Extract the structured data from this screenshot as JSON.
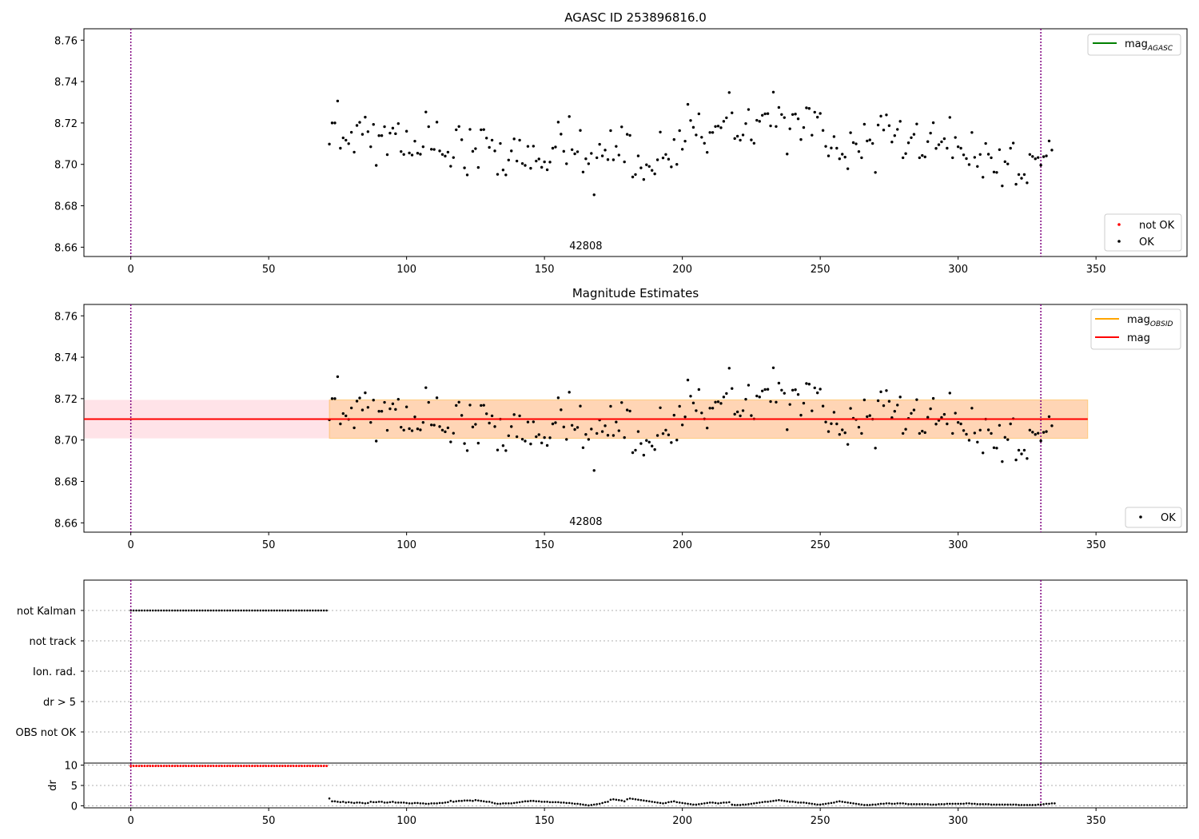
{
  "chart_data": [
    {
      "type": "scatter",
      "title": "AGASC ID 253896816.0",
      "xlabel": "",
      "ylabel": "",
      "xlim": [
        -17,
        383
      ],
      "ylim": [
        8.6555,
        8.7655
      ],
      "xticks": [
        "0",
        "50",
        "100",
        "150",
        "200",
        "250",
        "300",
        "350"
      ],
      "yticks": [
        "8.66",
        "8.68",
        "8.70",
        "8.72",
        "8.74",
        "8.76"
      ],
      "annotation": "42808",
      "vlines_x": [
        0,
        330
      ],
      "legend_upper": [
        {
          "label": "mag",
          "sub": "AGASC",
          "color": "#008000"
        }
      ],
      "legend_lower": [
        {
          "label": "not OK",
          "color": "#ff0000"
        },
        {
          "label": "OK",
          "color": "#000000"
        }
      ],
      "series": [
        {
          "name": "OK",
          "x_start": 72,
          "x_end": 330,
          "x_step": 1,
          "values": [
            8.7098,
            8.72,
            8.72,
            8.7306,
            8.7078,
            8.7128,
            8.7117,
            8.71,
            8.7155,
            8.7059,
            8.7188,
            8.7203,
            8.7145,
            8.7228,
            8.7158,
            8.7085,
            8.7193,
            8.6995,
            8.7139,
            8.7139,
            8.7182,
            8.7047,
            8.7151,
            8.7175,
            8.7148,
            8.7197,
            8.7062,
            8.7048,
            8.716,
            8.7055,
            8.7045,
            8.7112,
            8.7054,
            8.7049,
            8.7085,
            8.7253,
            8.7182,
            8.7073,
            8.7072,
            8.7204,
            8.7065,
            8.7048,
            8.704,
            8.7059,
            8.6991,
            8.7033,
            8.7167,
            8.7183,
            8.7119,
            8.6983,
            8.6949,
            8.7169,
            8.7063,
            8.7076,
            8.6985,
            8.7167,
            8.7168,
            8.7127,
            8.7082,
            8.7117,
            8.7065,
            8.6952,
            8.7101,
            8.6973,
            8.6949,
            8.7021,
            8.7065,
            8.7123,
            8.7016,
            8.7117,
            8.7004,
            8.6995,
            8.7087,
            8.6981,
            8.7088,
            8.7016,
            8.7026,
            8.6986,
            8.7012,
            8.6974,
            8.7011,
            8.7078,
            8.7084,
            8.7204,
            8.7146,
            8.7063,
            8.7003,
            8.7231,
            8.7071,
            8.7051,
            8.7061,
            8.7164,
            8.6963,
            8.7027,
            8.7003,
            8.7053,
            8.6853,
            8.7032,
            8.7097,
            8.7041,
            8.7069,
            8.7023,
            8.7163,
            8.7022,
            8.7087,
            8.7045,
            8.7181,
            8.7012,
            8.7145,
            8.714,
            8.6939,
            8.6951,
            8.7041,
            8.6983,
            8.6927,
            8.6998,
            8.699,
            8.6971,
            8.6954,
            8.7022,
            8.7156,
            8.7031,
            8.7048,
            8.7025,
            8.6988,
            8.712,
            8.7,
            8.7163,
            8.7073,
            8.7112,
            8.729,
            8.7212,
            8.7179,
            8.7142,
            8.7244,
            8.7131,
            8.7102,
            8.7058,
            8.7154,
            8.7154,
            8.7183,
            8.7185,
            8.7177,
            8.7208,
            8.7225,
            8.7347,
            8.7249,
            8.7125,
            8.7136,
            8.7117,
            8.7142,
            8.7197,
            8.7265,
            8.7118,
            8.7102,
            8.7213,
            8.7208,
            8.7237,
            8.7244,
            8.7245,
            8.7186,
            8.7349,
            8.7183,
            8.7275,
            8.7241,
            8.7226,
            8.705,
            8.7172,
            8.7241,
            8.7243,
            8.722,
            8.712,
            8.7178,
            8.7273,
            8.727,
            8.7141,
            8.7252,
            8.7228,
            8.7246,
            8.7164,
            8.7087,
            8.7041,
            8.7079,
            8.7134,
            8.7078,
            8.7027,
            8.7049,
            8.7035,
            8.6979,
            8.7153,
            8.7105,
            8.7099,
            8.7062,
            8.7032,
            8.7194,
            8.7113,
            8.7118,
            8.7101,
            8.6961,
            8.719,
            8.7233,
            8.7166,
            8.7239,
            8.7187,
            8.7108,
            8.7139,
            8.7169,
            8.7208,
            8.7032,
            8.7052,
            8.7104,
            8.7129,
            8.7145,
            8.7195,
            8.7032,
            8.7043,
            8.7036,
            8.711,
            8.7151,
            8.7201,
            8.7077,
            8.7095,
            8.7109,
            8.7124,
            8.7078,
            8.7227,
            8.7032,
            8.713,
            8.7085,
            8.7078,
            8.7046,
            8.7028,
            8.6999,
            8.7154,
            8.7034,
            8.699,
            8.7048,
            8.6938,
            8.7101,
            8.7049,
            8.7032,
            8.6963,
            8.6961,
            8.7071,
            8.6896,
            8.7013,
            8.7002,
            8.7078,
            8.7103,
            8.6904,
            8.6951,
            8.6933,
            8.6951,
            8.6911,
            8.7048,
            8.7038,
            8.7027,
            8.7033,
            8.6996,
            8.7037,
            8.7041,
            8.7113,
            8.7069
          ]
        }
      ]
    },
    {
      "type": "scatter",
      "title": "Magnitude Estimates",
      "xlabel": "",
      "ylabel": "",
      "xlim": [
        -17,
        383
      ],
      "ylim": [
        8.6555,
        8.7655
      ],
      "xticks": [
        "0",
        "50",
        "100",
        "150",
        "200",
        "250",
        "300",
        "350"
      ],
      "yticks": [
        "8.66",
        "8.68",
        "8.70",
        "8.72",
        "8.74",
        "8.76"
      ],
      "annotation": "42808",
      "vlines_x": [
        0,
        330
      ],
      "mag_line": 8.7101,
      "mag_band": [
        8.7008,
        8.7194
      ],
      "band_xrange": [
        -17,
        347
      ],
      "obsid_band_xrange": [
        72,
        347
      ],
      "legend_upper": [
        {
          "label": "mag",
          "sub": "OBSID",
          "color": "#ffa500"
        },
        {
          "label": "mag",
          "sub": "",
          "color": "#ff0000"
        }
      ],
      "legend_lower": [
        {
          "label": "OK",
          "color": "#000000"
        }
      ],
      "series": [
        {
          "name": "OK",
          "same_as_panel": 0
        }
      ]
    },
    {
      "type": "scatter",
      "title": "",
      "xlabel": "",
      "ylabel": "",
      "xlim": [
        -17,
        383
      ],
      "categories": [
        "not Kalman",
        "not track",
        "Ion. rad.",
        "dr > 5",
        "OBS not OK"
      ],
      "flags": [
        {
          "category": "not Kalman",
          "x_start": 0,
          "x_end": 71
        }
      ],
      "vlines_x": [
        0,
        330
      ]
    },
    {
      "type": "scatter",
      "title": "",
      "xlabel": "",
      "ylabel": "dr",
      "xlim": [
        -17,
        383
      ],
      "ylim": [
        -0.5,
        10.5
      ],
      "xticks": [
        "0",
        "50",
        "100",
        "150",
        "200",
        "250",
        "300",
        "350"
      ],
      "yticks": [
        "0",
        "5",
        "10"
      ],
      "vlines_x": [
        0,
        330
      ],
      "series": [
        {
          "name": "not OK",
          "color": "#ff0000",
          "x_start": 0,
          "x_end": 71,
          "value": 9.8
        },
        {
          "name": "OK",
          "color": "#000000",
          "x_start": 72,
          "x_end": 330,
          "x_step": 1,
          "values": [
            1.8,
            1.1,
            1.1,
            1.0,
            0.9,
            1.0,
            0.8,
            0.9,
            0.8,
            0.7,
            0.8,
            0.8,
            0.7,
            0.6,
            0.7,
            1.0,
            0.9,
            0.9,
            1.0,
            1.0,
            0.8,
            0.8,
            0.9,
            1.0,
            0.8,
            0.8,
            0.8,
            0.8,
            0.7,
            0.6,
            0.6,
            0.7,
            0.7,
            0.6,
            0.6,
            0.5,
            0.5,
            0.6,
            0.6,
            0.6,
            0.7,
            0.7,
            0.8,
            0.9,
            1.2,
            1.0,
            1.1,
            1.2,
            1.2,
            1.3,
            1.3,
            1.3,
            1.2,
            1.4,
            1.3,
            1.2,
            1.1,
            1.0,
            1.0,
            0.8,
            0.6,
            0.5,
            0.5,
            0.6,
            0.6,
            0.6,
            0.6,
            0.7,
            0.8,
            0.9,
            1.0,
            1.1,
            1.1,
            1.2,
            1.2,
            1.1,
            1.1,
            1.0,
            1.0,
            1.0,
            0.9,
            0.9,
            0.9,
            0.9,
            0.8,
            0.8,
            0.7,
            0.7,
            0.6,
            0.5,
            0.5,
            0.4,
            0.3,
            0.2,
            0.1,
            0.2,
            0.3,
            0.4,
            0.5,
            0.7,
            0.9,
            1.0,
            1.5,
            1.6,
            1.5,
            1.4,
            1.3,
            1.1,
            1.6,
            1.8,
            1.7,
            1.6,
            1.5,
            1.4,
            1.3,
            1.2,
            1.1,
            1.0,
            0.9,
            0.8,
            0.7,
            0.6,
            0.7,
            0.9,
            1.0,
            1.1,
            0.9,
            0.8,
            0.7,
            0.6,
            0.5,
            0.4,
            0.3,
            0.3,
            0.4,
            0.5,
            0.6,
            0.7,
            0.8,
            0.8,
            0.7,
            0.6,
            0.7,
            0.8,
            0.8,
            0.9,
            0.3,
            0.2,
            0.2,
            0.2,
            0.3,
            0.3,
            0.4,
            0.5,
            0.6,
            0.7,
            0.8,
            0.9,
            1.0,
            1.0,
            1.1,
            1.2,
            1.3,
            1.4,
            1.3,
            1.2,
            1.1,
            1.0,
            1.0,
            0.9,
            0.8,
            0.8,
            0.8,
            0.7,
            0.6,
            0.5,
            0.4,
            0.3,
            0.3,
            0.4,
            0.5,
            0.6,
            0.7,
            0.8,
            1.0,
            1.1,
            1.0,
            0.9,
            0.8,
            0.7,
            0.6,
            0.5,
            0.4,
            0.3,
            0.2,
            0.2,
            0.2,
            0.3,
            0.3,
            0.4,
            0.5,
            0.5,
            0.6,
            0.6,
            0.5,
            0.5,
            0.6,
            0.6,
            0.6,
            0.5,
            0.4,
            0.4,
            0.4,
            0.4,
            0.4,
            0.4,
            0.4,
            0.4,
            0.3,
            0.3,
            0.3,
            0.4,
            0.4,
            0.4,
            0.5,
            0.5,
            0.5,
            0.5,
            0.5,
            0.5,
            0.5,
            0.6,
            0.6,
            0.5,
            0.5,
            0.4,
            0.4,
            0.4,
            0.4,
            0.4,
            0.3,
            0.3,
            0.3,
            0.3,
            0.3,
            0.3,
            0.3,
            0.3,
            0.3,
            0.3,
            0.2,
            0.2,
            0.2,
            0.2,
            0.2,
            0.2,
            0.2,
            0.3,
            0.3,
            0.4,
            0.5,
            0.5,
            0.6,
            0.6
          ]
        }
      ]
    }
  ]
}
